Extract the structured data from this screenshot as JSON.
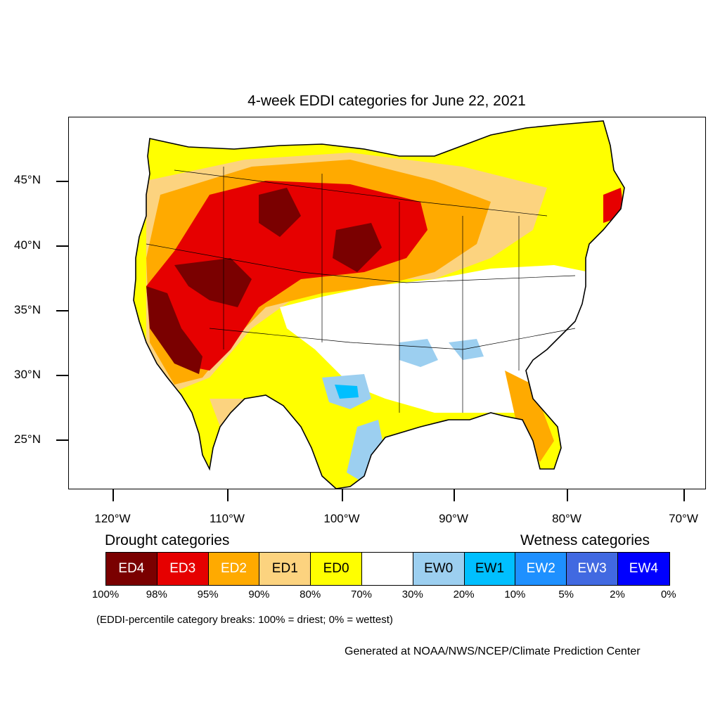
{
  "title": "4-week EDDI categories for June 22, 2021",
  "lat_labels": [
    "45°N",
    "40°N",
    "35°N",
    "30°N",
    "25°N"
  ],
  "lon_labels": [
    "120°W",
    "110°W",
    "100°W",
    "90°W",
    "80°W",
    "70°W"
  ],
  "drought_title": "Drought categories",
  "wetness_title": "Wetness categories",
  "legend": [
    {
      "label": "ED4",
      "color": "#7a0000",
      "text_color": "#ffffff"
    },
    {
      "label": "ED3",
      "color": "#e60000",
      "text_color": "#ffffff"
    },
    {
      "label": "ED2",
      "color": "#ffaa00",
      "text_color": "#ffffff"
    },
    {
      "label": "ED1",
      "color": "#fcd37f",
      "text_color": "#000000"
    },
    {
      "label": "ED0",
      "color": "#ffff00",
      "text_color": "#000000"
    },
    {
      "label": "",
      "color": "#ffffff",
      "text_color": "#000000"
    },
    {
      "label": "EW0",
      "color": "#9ccff0",
      "text_color": "#000000"
    },
    {
      "label": "EW1",
      "color": "#00bfff",
      "text_color": "#000000"
    },
    {
      "label": "EW2",
      "color": "#1e90ff",
      "text_color": "#ffffff"
    },
    {
      "label": "EW3",
      "color": "#4169e1",
      "text_color": "#ffffff"
    },
    {
      "label": "EW4",
      "color": "#0000ff",
      "text_color": "#ffffff"
    }
  ],
  "percent_breaks": [
    "100%",
    "98%",
    "95%",
    "90%",
    "80%",
    "70%",
    "30%",
    "20%",
    "10%",
    "5%",
    "2%",
    "0%"
  ],
  "note": "(EDDI-percentile category breaks: 100% = driest; 0% = wettest)",
  "credit": "Generated at NOAA/NWS/NCEP/Climate Prediction Center"
}
